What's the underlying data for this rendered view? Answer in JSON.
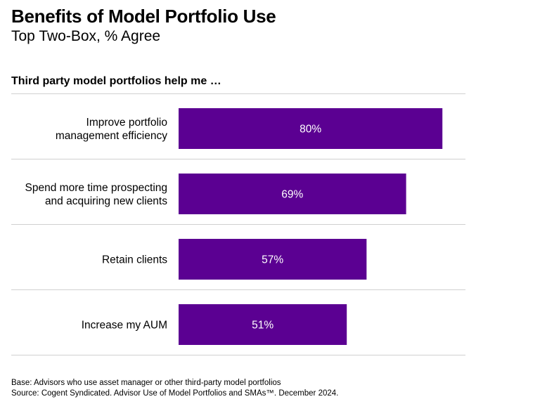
{
  "header": {
    "title": "Benefits of Model Portfolio Use",
    "subtitle": "Top Two-Box, % Agree"
  },
  "question": "Third party model portfolios help me …",
  "chart_data": {
    "type": "bar",
    "orientation": "horizontal",
    "categories": [
      [
        "Improve portfolio",
        "management efficiency"
      ],
      [
        "Spend more time prospecting",
        "and acquiring new clients"
      ],
      [
        "Retain clients"
      ],
      [
        "Increase my AUM"
      ]
    ],
    "values": [
      80,
      69,
      57,
      51
    ],
    "value_labels": [
      "80%",
      "69%",
      "57%",
      "51%"
    ],
    "xlim": [
      0,
      100
    ],
    "bar_color": "#5b0092",
    "grid": false,
    "legend": "none"
  },
  "footnotes": {
    "base": "Base: Advisors who use asset manager or other third-party model portfolios",
    "source": "Source: Cogent Syndicated. Advisor Use of Model Portfolios and SMAs™. December 2024."
  }
}
